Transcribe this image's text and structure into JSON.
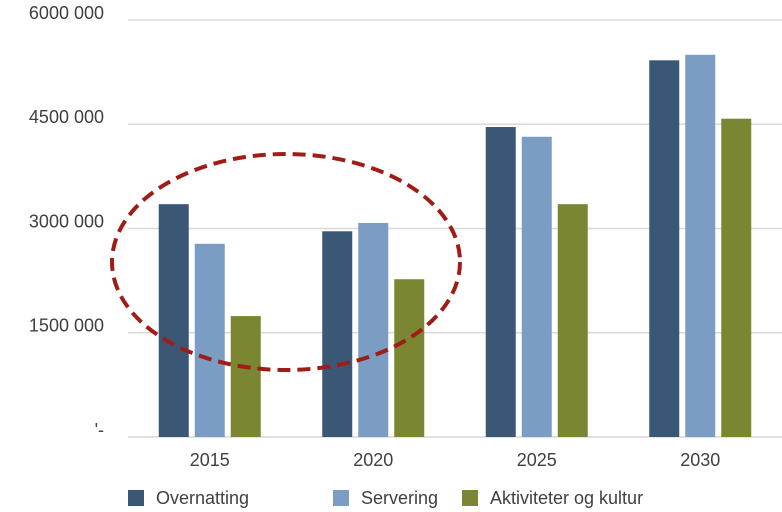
{
  "chart_data": {
    "type": "bar",
    "categories": [
      "2015",
      "2020",
      "2025",
      "2030"
    ],
    "series": [
      {
        "name": "Overnatting",
        "color": "#3a5775",
        "values": [
          3350000,
          2960000,
          4460000,
          5420000
        ]
      },
      {
        "name": "Servering",
        "color": "#7b9dc3",
        "values": [
          2780000,
          3080000,
          4320000,
          5500000
        ]
      },
      {
        "name": "Aktiviteter og kultur",
        "color": "#7a8632",
        "values": [
          1740000,
          2270000,
          3350000,
          4580000
        ]
      }
    ],
    "ylim": [
      0,
      6000000
    ],
    "yticks": [
      {
        "value": 0,
        "label": "'-"
      },
      {
        "value": 1500000,
        "label": "1500 000"
      },
      {
        "value": 3000000,
        "label": "3000 000"
      },
      {
        "value": 4500000,
        "label": "4500 000"
      },
      {
        "value": 6000000,
        "label": "6000 000"
      }
    ],
    "grid": true
  }
}
